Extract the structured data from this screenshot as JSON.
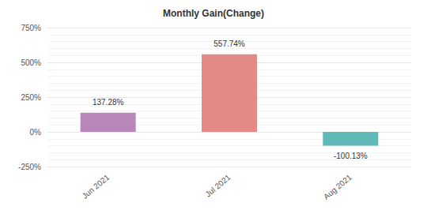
{
  "chart_data": {
    "type": "bar",
    "title": "Monthly Gain(Change)",
    "categories": [
      "Jun 2021",
      "Jul 2021",
      "Aug 2021"
    ],
    "values": [
      137.28,
      557.74,
      -100.13
    ],
    "value_labels": [
      "137.28%",
      "557.74%",
      "-100.13%"
    ],
    "colors": [
      "#b986b9",
      "#e48a86",
      "#5fb9b6"
    ],
    "ylim": [
      -250,
      750
    ],
    "yticks": [
      {
        "value": -250,
        "label": "-250%"
      },
      {
        "value": 0,
        "label": "0%"
      },
      {
        "value": 250,
        "label": "250%"
      },
      {
        "value": 500,
        "label": "500%"
      },
      {
        "value": 750,
        "label": "750%"
      }
    ],
    "grid": true,
    "data_labels": true
  }
}
